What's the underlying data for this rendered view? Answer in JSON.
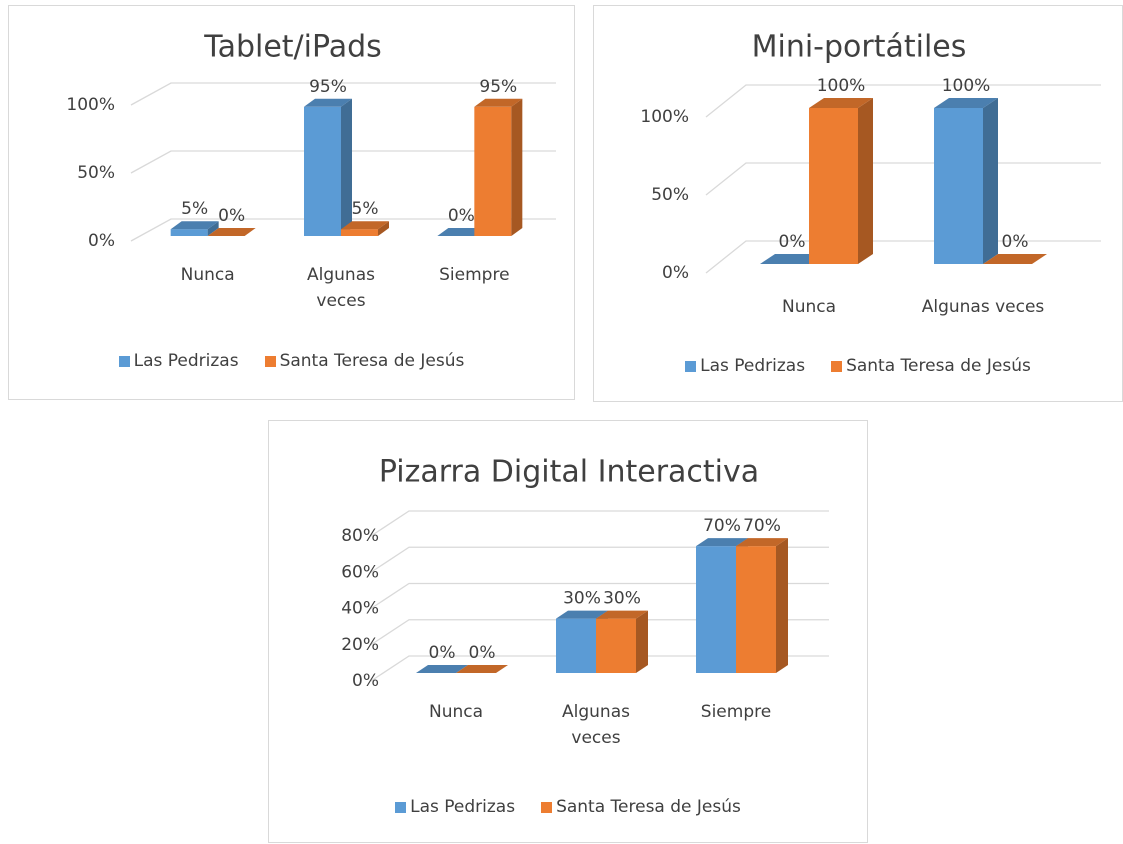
{
  "chart_data": [
    {
      "type": "bar3d",
      "title": "Tablet/iPads",
      "categories": [
        "Nunca",
        "Algunas veces",
        "Siempre"
      ],
      "series": [
        {
          "name": "Las Pedrizas",
          "color": "#5b9bd5",
          "values": [
            5,
            95,
            0
          ],
          "value_labels": [
            "5%",
            "95%",
            "0%"
          ]
        },
        {
          "name": "Santa Teresa de Jesús",
          "color": "#ed7d31",
          "values": [
            0,
            5,
            95
          ],
          "value_labels": [
            "0%",
            "5%",
            "95%"
          ]
        }
      ],
      "ylim": [
        0,
        100
      ],
      "yticks": [
        {
          "value": 0,
          "label": "0%"
        },
        {
          "value": 50,
          "label": "50%"
        },
        {
          "value": 100,
          "label": "100%"
        }
      ],
      "grid": true,
      "legend": "bottom"
    },
    {
      "type": "bar3d",
      "title": "Mini-portátiles",
      "categories": [
        "Nunca",
        "Algunas veces"
      ],
      "series": [
        {
          "name": "Las Pedrizas",
          "color": "#5b9bd5",
          "values": [
            0,
            100
          ],
          "value_labels": [
            "0%",
            "100%"
          ]
        },
        {
          "name": "Santa Teresa de Jesús",
          "color": "#ed7d31",
          "values": [
            100,
            0
          ],
          "value_labels": [
            "100%",
            "0%"
          ]
        }
      ],
      "ylim": [
        0,
        100
      ],
      "yticks": [
        {
          "value": 0,
          "label": "0%"
        },
        {
          "value": 50,
          "label": "50%"
        },
        {
          "value": 100,
          "label": "100%"
        }
      ],
      "grid": true,
      "legend": "bottom"
    },
    {
      "type": "bar3d",
      "title": "Pizarra Digital Interactiva",
      "categories": [
        "Nunca",
        "Algunas veces",
        "Siempre"
      ],
      "series": [
        {
          "name": "Las Pedrizas",
          "color": "#5b9bd5",
          "values": [
            0,
            30,
            70
          ],
          "value_labels": [
            "0%",
            "30%",
            "70%"
          ]
        },
        {
          "name": "Santa Teresa de Jesús",
          "color": "#ed7d31",
          "values": [
            0,
            30,
            70
          ],
          "value_labels": [
            "0%",
            "30%",
            "70%"
          ]
        }
      ],
      "ylim": [
        0,
        80
      ],
      "yticks": [
        {
          "value": 0,
          "label": "0%"
        },
        {
          "value": 20,
          "label": "20%"
        },
        {
          "value": 40,
          "label": "40%"
        },
        {
          "value": 60,
          "label": "60%"
        },
        {
          "value": 80,
          "label": "80%"
        }
      ],
      "grid": true,
      "legend": "bottom"
    }
  ]
}
